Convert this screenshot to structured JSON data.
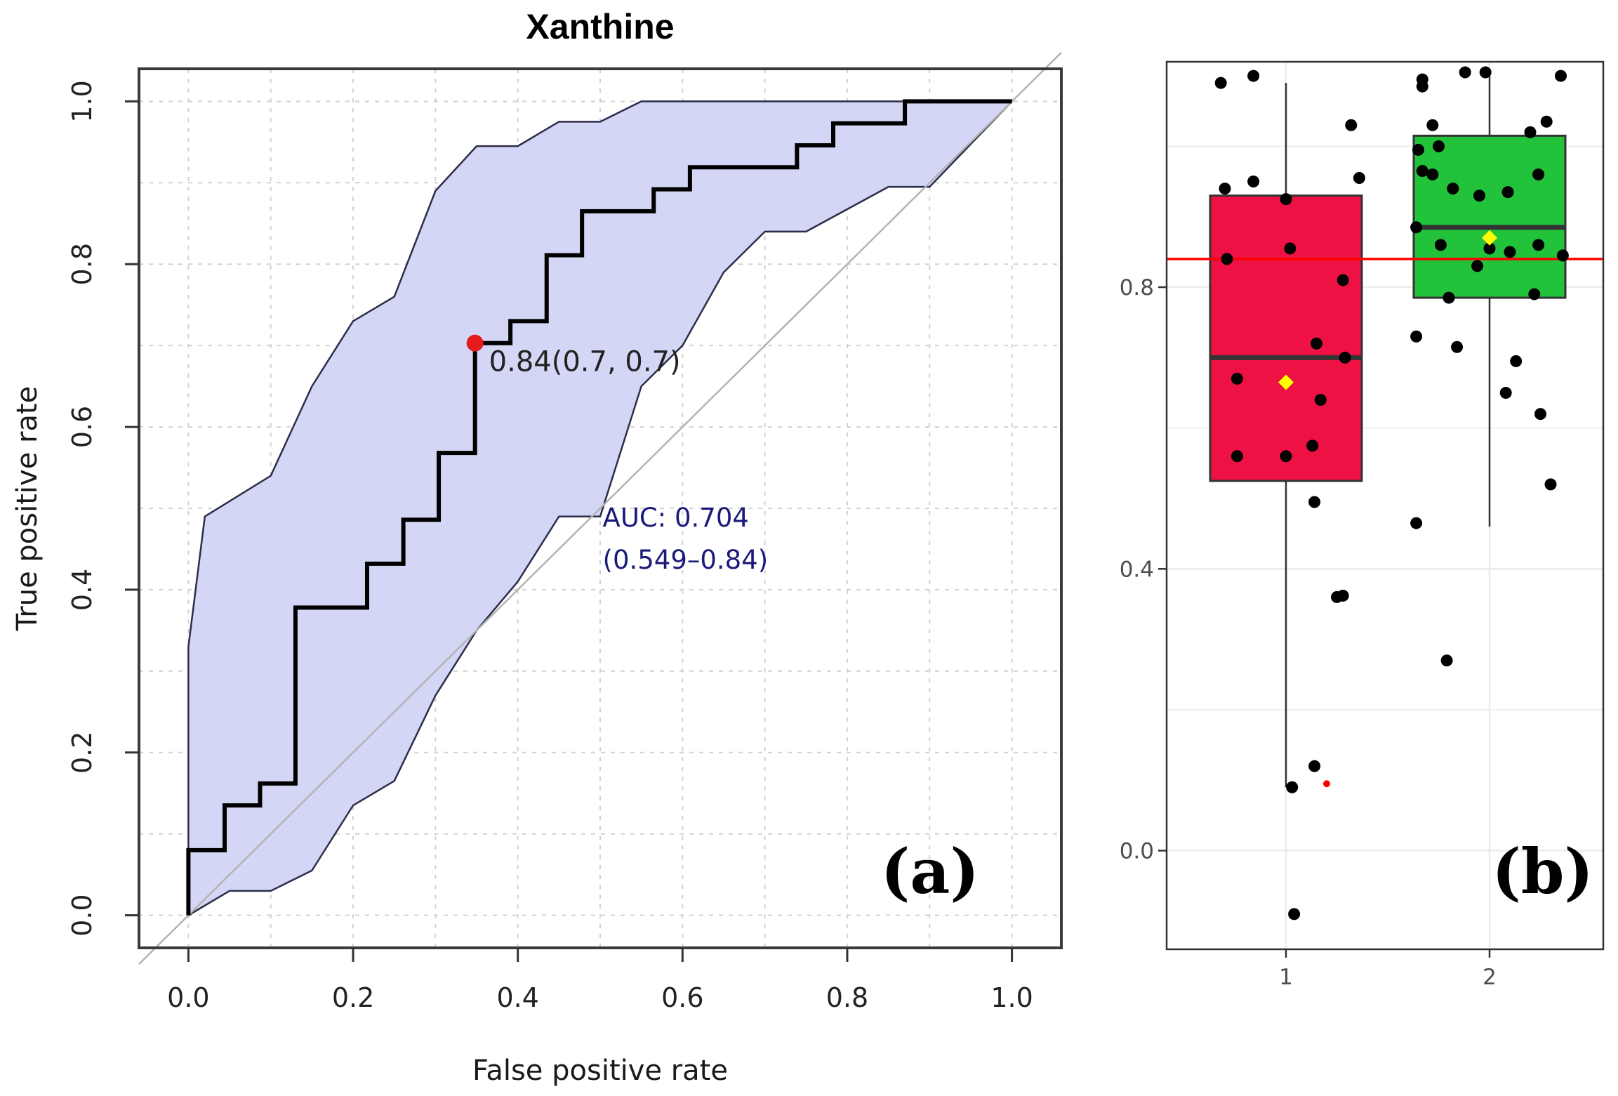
{
  "chart_data": [
    {
      "type": "line",
      "panel_label": "(a)",
      "title": "Xanthine",
      "xlabel": "False positive rate",
      "ylabel": "True positive rate",
      "xlim": [
        -0.06,
        1.06
      ],
      "ylim": [
        -0.04,
        1.04
      ],
      "x_ticks": [
        "0.0",
        "0.2",
        "0.4",
        "0.6",
        "0.8",
        "1.0"
      ],
      "y_ticks": [
        "0.0",
        "0.2",
        "0.4",
        "0.6",
        "0.8",
        "1.0"
      ],
      "grid": true,
      "roc_curve": [
        [
          0,
          0
        ],
        [
          0,
          0.08
        ],
        [
          0.044,
          0.08
        ],
        [
          0.044,
          0.135
        ],
        [
          0.087,
          0.135
        ],
        [
          0.087,
          0.162
        ],
        [
          0.13,
          0.162
        ],
        [
          0.13,
          0.378
        ],
        [
          0.217,
          0.378
        ],
        [
          0.217,
          0.432
        ],
        [
          0.261,
          0.432
        ],
        [
          0.261,
          0.486
        ],
        [
          0.304,
          0.486
        ],
        [
          0.304,
          0.568
        ],
        [
          0.348,
          0.568
        ],
        [
          0.348,
          0.703
        ],
        [
          0.391,
          0.703
        ],
        [
          0.391,
          0.73
        ],
        [
          0.435,
          0.73
        ],
        [
          0.435,
          0.811
        ],
        [
          0.478,
          0.811
        ],
        [
          0.478,
          0.865
        ],
        [
          0.565,
          0.865
        ],
        [
          0.565,
          0.892
        ],
        [
          0.609,
          0.892
        ],
        [
          0.609,
          0.919
        ],
        [
          0.739,
          0.919
        ],
        [
          0.739,
          0.946
        ],
        [
          0.783,
          0.946
        ],
        [
          0.783,
          0.973
        ],
        [
          0.87,
          0.973
        ],
        [
          0.87,
          1.0
        ],
        [
          1.0,
          1.0
        ]
      ],
      "ci_upper": [
        [
          0,
          0.33
        ],
        [
          0.02,
          0.49
        ],
        [
          0.1,
          0.54
        ],
        [
          0.15,
          0.65
        ],
        [
          0.2,
          0.73
        ],
        [
          0.25,
          0.76
        ],
        [
          0.3,
          0.89
        ],
        [
          0.35,
          0.945
        ],
        [
          0.4,
          0.945
        ],
        [
          0.45,
          0.975
        ],
        [
          0.5,
          0.975
        ],
        [
          0.55,
          1.0
        ],
        [
          1.0,
          1.0
        ]
      ],
      "ci_lower": [
        [
          0,
          0
        ],
        [
          0.05,
          0.03
        ],
        [
          0.1,
          0.03
        ],
        [
          0.15,
          0.055
        ],
        [
          0.2,
          0.135
        ],
        [
          0.25,
          0.165
        ],
        [
          0.3,
          0.27
        ],
        [
          0.35,
          0.35
        ],
        [
          0.4,
          0.41
        ],
        [
          0.45,
          0.49
        ],
        [
          0.5,
          0.49
        ],
        [
          0.55,
          0.65
        ],
        [
          0.6,
          0.7
        ],
        [
          0.65,
          0.79
        ],
        [
          0.7,
          0.84
        ],
        [
          0.75,
          0.84
        ],
        [
          0.85,
          0.895
        ],
        [
          0.9,
          0.895
        ],
        [
          1.0,
          1.0
        ]
      ],
      "diagonal": true,
      "optimal_point": {
        "x": 0.348,
        "y": 0.703,
        "label": "0.84(0.7, 0.7)"
      },
      "auc_label": "AUC: 0.704",
      "auc_ci_label": "(0.549–0.84)",
      "colors": {
        "ci_fill": "#d4d6f6",
        "ci_line": "#2d2d4a",
        "curve": "#000000",
        "point": "#e41a1c",
        "diagonal": "#b3b3b3"
      }
    },
    {
      "type": "box",
      "panel_label": "(b)",
      "title": "",
      "xlabel": "",
      "ylabel": "",
      "ylim": [
        -0.14,
        1.12
      ],
      "categories": [
        "1",
        "2"
      ],
      "y_ticks": [
        "0.0",
        "0.4",
        "0.8"
      ],
      "y_tick_values": [
        0.0,
        0.4,
        0.8
      ],
      "threshold": 0.84,
      "boxes": [
        {
          "group": "1",
          "q1": 0.525,
          "median": 0.7,
          "q3": 0.93,
          "whisker_low": 0.09,
          "whisker_high": 1.09,
          "mean": 0.665,
          "color": "#ee1144"
        },
        {
          "group": "2",
          "q1": 0.785,
          "median": 0.885,
          "q3": 1.015,
          "whisker_low": 0.46,
          "whisker_high": 1.1,
          "mean": 0.87,
          "color": "#22c23a"
        }
      ],
      "points": [
        {
          "group": 1,
          "jitter": -0.32,
          "y": 1.09
        },
        {
          "group": 1,
          "jitter": -0.16,
          "y": 1.1
        },
        {
          "group": 1,
          "jitter": -0.3,
          "y": 0.94
        },
        {
          "group": 1,
          "jitter": -0.16,
          "y": 0.95
        },
        {
          "group": 1,
          "jitter": 0.0,
          "y": 0.925
        },
        {
          "group": 1,
          "jitter": 0.32,
          "y": 1.03
        },
        {
          "group": 1,
          "jitter": 0.36,
          "y": 0.955
        },
        {
          "group": 1,
          "jitter": -0.29,
          "y": 0.84
        },
        {
          "group": 1,
          "jitter": 0.02,
          "y": 0.855
        },
        {
          "group": 1,
          "jitter": 0.28,
          "y": 0.81
        },
        {
          "group": 1,
          "jitter": 0.29,
          "y": 0.7
        },
        {
          "group": 1,
          "jitter": 0.15,
          "y": 0.72
        },
        {
          "group": 1,
          "jitter": -0.24,
          "y": 0.67
        },
        {
          "group": 1,
          "jitter": 0.17,
          "y": 0.64
        },
        {
          "group": 1,
          "jitter": 0.13,
          "y": 0.575
        },
        {
          "group": 1,
          "jitter": -0.24,
          "y": 0.56
        },
        {
          "group": 1,
          "jitter": 0.0,
          "y": 0.56
        },
        {
          "group": 1,
          "jitter": 0.14,
          "y": 0.495
        },
        {
          "group": 1,
          "jitter": 0.25,
          "y": 0.36
        },
        {
          "group": 1,
          "jitter": 0.28,
          "y": 0.362
        },
        {
          "group": 1,
          "jitter": 0.14,
          "y": 0.12
        },
        {
          "group": 1,
          "jitter": 0.03,
          "y": 0.09
        },
        {
          "group": 1,
          "jitter": 0.04,
          "y": -0.09
        },
        {
          "group": 2,
          "jitter": -0.33,
          "y": 1.085
        },
        {
          "group": 2,
          "jitter": -0.33,
          "y": 1.095
        },
        {
          "group": 2,
          "jitter": -0.28,
          "y": 1.03
        },
        {
          "group": 2,
          "jitter": -0.12,
          "y": 1.105
        },
        {
          "group": 2,
          "jitter": -0.02,
          "y": 1.105
        },
        {
          "group": 2,
          "jitter": 0.35,
          "y": 1.1
        },
        {
          "group": 2,
          "jitter": 0.28,
          "y": 1.035
        },
        {
          "group": 2,
          "jitter": 0.2,
          "y": 1.02
        },
        {
          "group": 2,
          "jitter": -0.35,
          "y": 0.995
        },
        {
          "group": 2,
          "jitter": -0.25,
          "y": 1.0
        },
        {
          "group": 2,
          "jitter": -0.33,
          "y": 0.965
        },
        {
          "group": 2,
          "jitter": -0.28,
          "y": 0.96
        },
        {
          "group": 2,
          "jitter": -0.18,
          "y": 0.94
        },
        {
          "group": 2,
          "jitter": -0.05,
          "y": 0.93
        },
        {
          "group": 2,
          "jitter": 0.09,
          "y": 0.935
        },
        {
          "group": 2,
          "jitter": 0.24,
          "y": 0.96
        },
        {
          "group": 2,
          "jitter": -0.36,
          "y": 0.885
        },
        {
          "group": 2,
          "jitter": -0.24,
          "y": 0.86
        },
        {
          "group": 2,
          "jitter": -0.06,
          "y": 0.83
        },
        {
          "group": 2,
          "jitter": 0.0,
          "y": 0.855
        },
        {
          "group": 2,
          "jitter": 0.1,
          "y": 0.85
        },
        {
          "group": 2,
          "jitter": 0.24,
          "y": 0.86
        },
        {
          "group": 2,
          "jitter": 0.36,
          "y": 0.845
        },
        {
          "group": 2,
          "jitter": -0.2,
          "y": 0.785
        },
        {
          "group": 2,
          "jitter": 0.22,
          "y": 0.79
        },
        {
          "group": 2,
          "jitter": -0.36,
          "y": 0.73
        },
        {
          "group": 2,
          "jitter": -0.16,
          "y": 0.715
        },
        {
          "group": 2,
          "jitter": 0.13,
          "y": 0.695
        },
        {
          "group": 2,
          "jitter": 0.08,
          "y": 0.65
        },
        {
          "group": 2,
          "jitter": 0.25,
          "y": 0.62
        },
        {
          "group": 2,
          "jitter": -0.36,
          "y": 0.465
        },
        {
          "group": 2,
          "jitter": 0.3,
          "y": 0.52
        },
        {
          "group": 2,
          "jitter": -0.21,
          "y": 0.27
        }
      ],
      "outlier": {
        "group": 1,
        "jitter": 0.2,
        "y": 0.095
      },
      "colors": {
        "threshold": "#ff0000",
        "point": "#000000",
        "mean": "#ffff00",
        "outlier": "#ff0000",
        "box_line": "#333333"
      }
    }
  ]
}
